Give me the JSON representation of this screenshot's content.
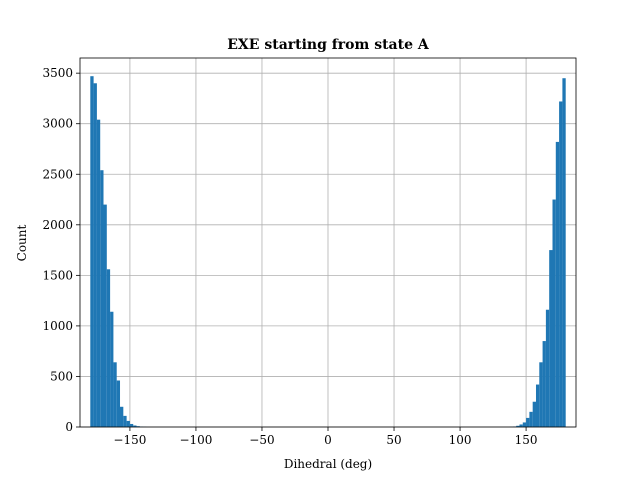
{
  "colors": {
    "bar": "#1f77b4",
    "grid": "#b0b0b0",
    "axis": "#000000",
    "background": "#ffffff"
  },
  "chart_data": {
    "type": "bar",
    "title": "EXE starting from state A",
    "xlabel": "Dihedral (deg)",
    "ylabel": "Count",
    "xlim": [
      -180,
      180
    ],
    "ylim": [
      0,
      3650
    ],
    "grid": true,
    "xticks": [
      -150,
      -100,
      -50,
      0,
      50,
      100,
      150
    ],
    "xtick_labels": [
      "−150",
      "−100",
      "−50",
      "0",
      "50",
      "100",
      "150"
    ],
    "yticks": [
      0,
      500,
      1000,
      1500,
      2000,
      2500,
      3000,
      3500
    ],
    "ytick_labels": [
      "0",
      "500",
      "1000",
      "1500",
      "2000",
      "2500",
      "3000",
      "3500"
    ],
    "bin_width": 2.5,
    "bins": [
      {
        "x0": -180.0,
        "x1": -177.5,
        "count": 3470
      },
      {
        "x0": -177.5,
        "x1": -175.0,
        "count": 3400
      },
      {
        "x0": -175.0,
        "x1": -172.5,
        "count": 3040
      },
      {
        "x0": -172.5,
        "x1": -170.0,
        "count": 2540
      },
      {
        "x0": -170.0,
        "x1": -167.5,
        "count": 2200
      },
      {
        "x0": -167.5,
        "x1": -165.0,
        "count": 1560
      },
      {
        "x0": -165.0,
        "x1": -162.5,
        "count": 1140
      },
      {
        "x0": -162.5,
        "x1": -160.0,
        "count": 640
      },
      {
        "x0": -160.0,
        "x1": -157.5,
        "count": 460
      },
      {
        "x0": -157.5,
        "x1": -155.0,
        "count": 200
      },
      {
        "x0": -155.0,
        "x1": -152.5,
        "count": 110
      },
      {
        "x0": -152.5,
        "x1": -150.0,
        "count": 60
      },
      {
        "x0": -150.0,
        "x1": -147.5,
        "count": 30
      },
      {
        "x0": -147.5,
        "x1": -145.0,
        "count": 15
      },
      {
        "x0": -145.0,
        "x1": -142.5,
        "count": 8
      },
      {
        "x0": -142.5,
        "x1": -140.0,
        "count": 4
      },
      {
        "x0": -140.0,
        "x1": -137.5,
        "count": 2
      },
      {
        "x0": 137.5,
        "x1": 140.0,
        "count": 2
      },
      {
        "x0": 140.0,
        "x1": 142.5,
        "count": 5
      },
      {
        "x0": 142.5,
        "x1": 145.0,
        "count": 12
      },
      {
        "x0": 145.0,
        "x1": 147.5,
        "count": 25
      },
      {
        "x0": 147.5,
        "x1": 150.0,
        "count": 45
      },
      {
        "x0": 150.0,
        "x1": 152.5,
        "count": 90
      },
      {
        "x0": 152.5,
        "x1": 155.0,
        "count": 150
      },
      {
        "x0": 155.0,
        "x1": 157.5,
        "count": 250
      },
      {
        "x0": 157.5,
        "x1": 160.0,
        "count": 420
      },
      {
        "x0": 160.0,
        "x1": 162.5,
        "count": 640
      },
      {
        "x0": 162.5,
        "x1": 165.0,
        "count": 850
      },
      {
        "x0": 165.0,
        "x1": 167.5,
        "count": 1160
      },
      {
        "x0": 167.5,
        "x1": 170.0,
        "count": 1750
      },
      {
        "x0": 170.0,
        "x1": 172.5,
        "count": 2250
      },
      {
        "x0": 172.5,
        "x1": 175.0,
        "count": 2820
      },
      {
        "x0": 175.0,
        "x1": 177.5,
        "count": 3220
      },
      {
        "x0": 177.5,
        "x1": 180.0,
        "count": 3450
      }
    ]
  }
}
